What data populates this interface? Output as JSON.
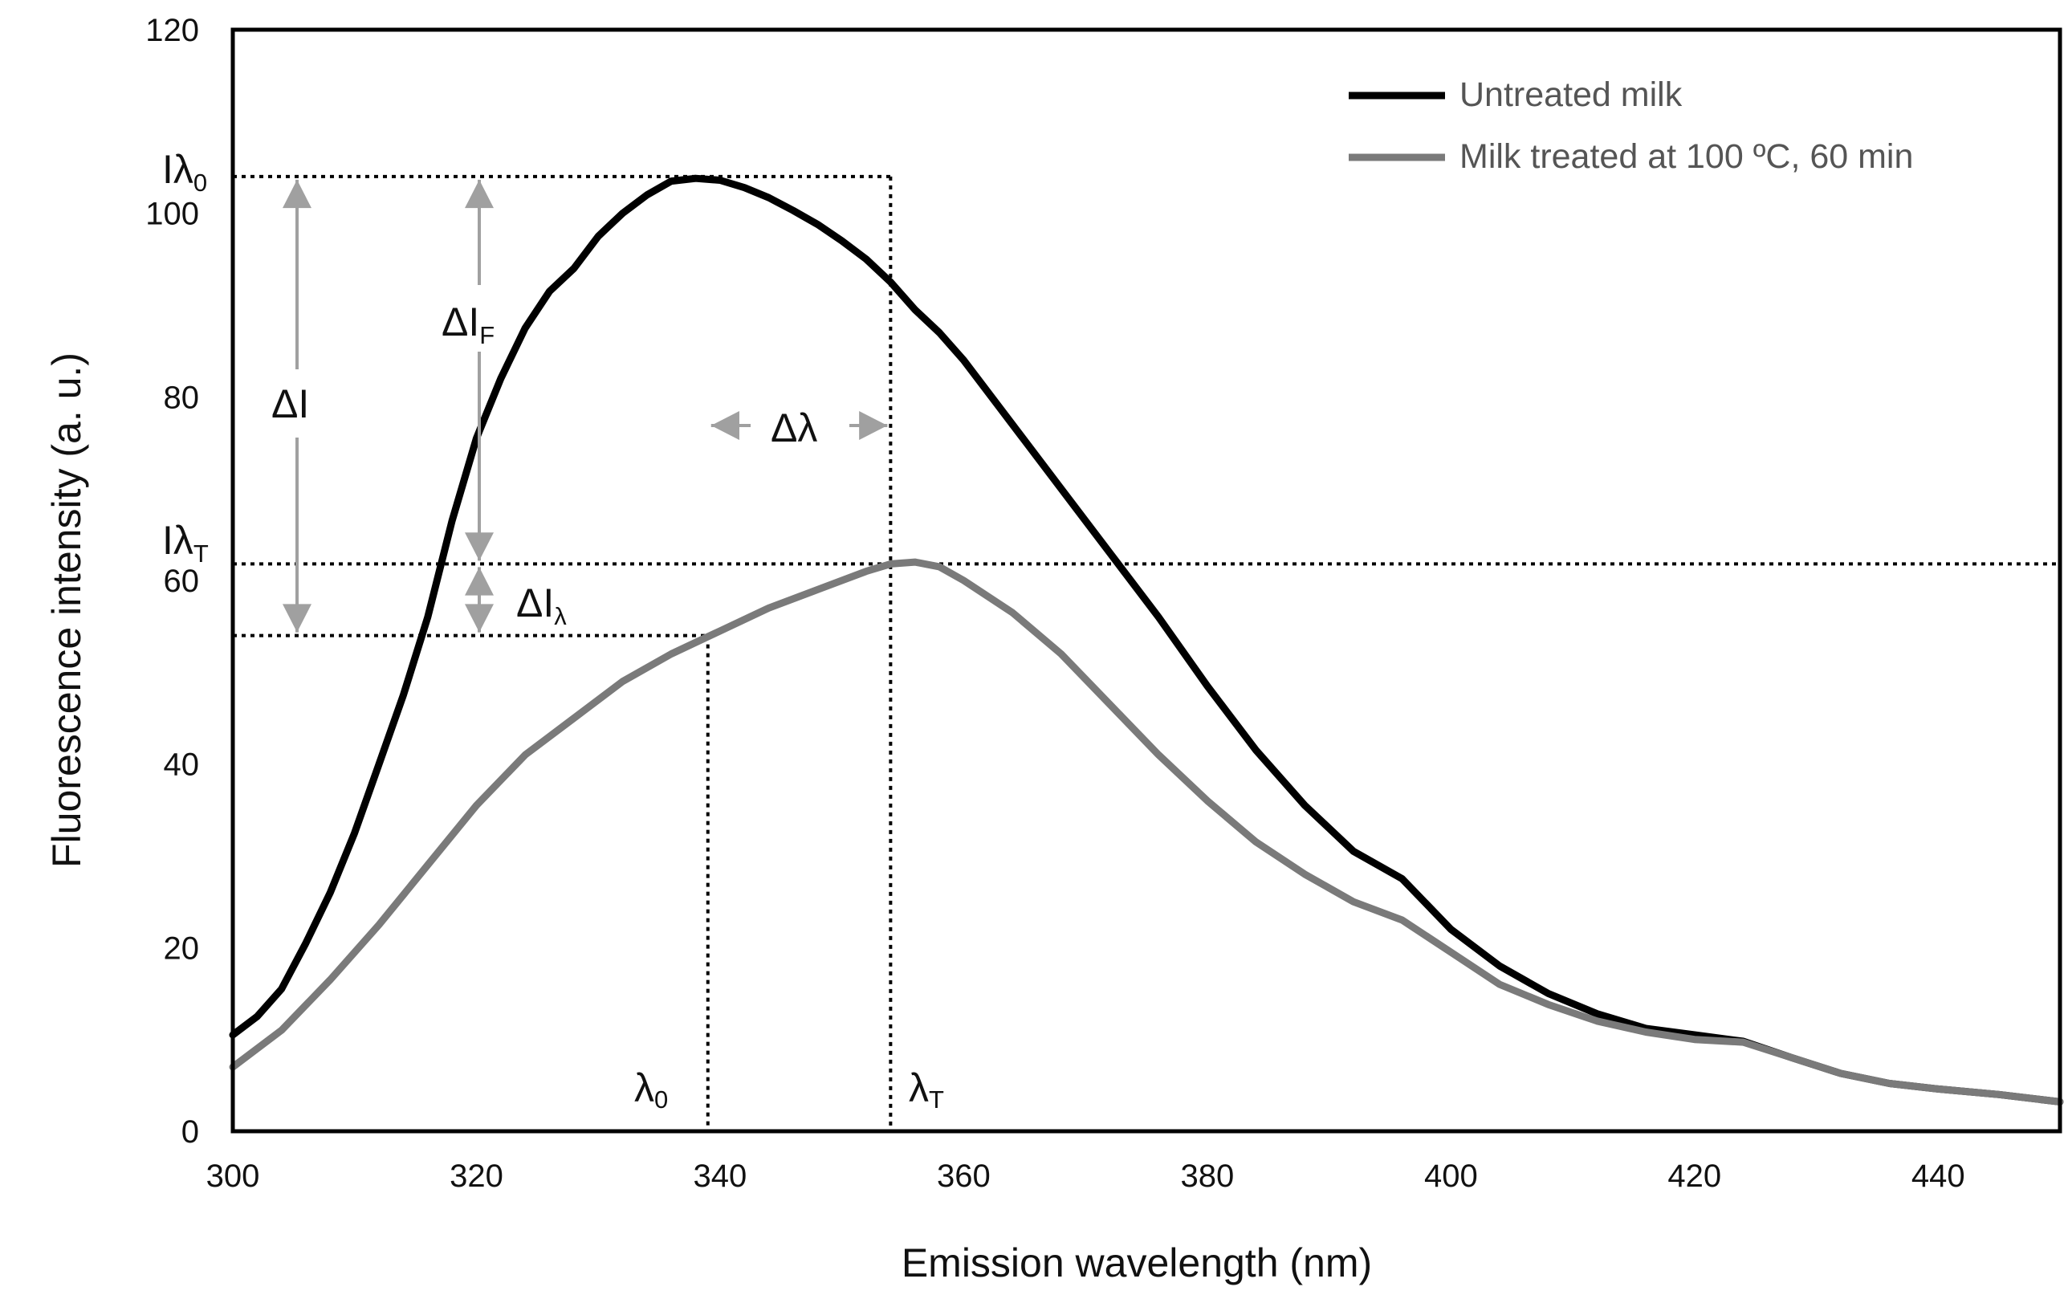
{
  "chart_data": {
    "type": "line",
    "title": "",
    "xlabel": "Emission wavelength (nm)",
    "ylabel": "Fluorescence intensity (a. u.)",
    "xlim": [
      300,
      450
    ],
    "ylim": [
      0,
      120
    ],
    "x_ticks": [
      "300",
      "320",
      "340",
      "360",
      "380",
      "400",
      "420",
      "440"
    ],
    "y_ticks": [
      "0",
      "20",
      "40",
      "60",
      "80",
      "100",
      "120"
    ],
    "grid": false,
    "legend_position": "top-right",
    "series": [
      {
        "name": "Untreated milk",
        "color": "#000000",
        "x": [
          300,
          302,
          304,
          306,
          308,
          310,
          312,
          314,
          316,
          318,
          320,
          322,
          324,
          326,
          328,
          330,
          332,
          334,
          336,
          338,
          340,
          342,
          344,
          346,
          348,
          350,
          352,
          354,
          356,
          358,
          360,
          364,
          368,
          372,
          376,
          380,
          384,
          388,
          392,
          396,
          400,
          404,
          408,
          412,
          416,
          420,
          424,
          428,
          432,
          436,
          440,
          445,
          450
        ],
        "values": [
          10.5,
          12.5,
          15.5,
          20.5,
          26,
          32.5,
          40,
          47.5,
          56,
          66.5,
          75.5,
          82,
          87.5,
          91.5,
          94,
          97.5,
          100,
          102,
          103.5,
          103.8,
          103.6,
          102.8,
          101.7,
          100.3,
          98.8,
          97,
          95,
          92.5,
          89.5,
          87,
          84,
          77,
          70,
          63,
          56,
          48.5,
          41.5,
          35.5,
          30.5,
          27.5,
          22,
          18,
          15,
          12.8,
          11.2,
          10.5,
          9.8,
          8,
          6.3,
          5.2,
          4.6,
          4.0,
          3.2
        ]
      },
      {
        "name": "Milk treated at 100 ºC, 60 min",
        "color": "#7a7a7a",
        "x": [
          300,
          304,
          308,
          312,
          316,
          320,
          324,
          328,
          332,
          336,
          340,
          344,
          348,
          352,
          354,
          356,
          358,
          360,
          364,
          368,
          372,
          376,
          380,
          384,
          388,
          392,
          396,
          400,
          404,
          408,
          412,
          416,
          420,
          424,
          428,
          432,
          436,
          440,
          445,
          450
        ],
        "values": [
          7,
          11,
          16.5,
          22.5,
          29,
          35.5,
          41,
          45,
          49,
          52,
          54.5,
          57,
          59,
          61,
          61.8,
          62,
          61.5,
          60,
          56.5,
          52,
          46.5,
          41,
          36,
          31.5,
          28,
          25,
          23,
          19.5,
          16,
          13.8,
          12,
          10.8,
          10,
          9.7,
          8,
          6.3,
          5.2,
          4.6,
          4.0,
          3.2
        ]
      }
    ],
    "annotations": {
      "i_lambda0": {
        "main": "Iλ",
        "sub": "0"
      },
      "i_lambdaT": {
        "main": "Iλ",
        "sub": "T"
      },
      "delta_i": "ΔI",
      "delta_if": {
        "main": "ΔI",
        "sub": "F"
      },
      "delta_ilambda": {
        "main": "ΔI",
        "sub": "λ"
      },
      "delta_lambda": "Δλ",
      "lambda0": {
        "main": "λ",
        "sub": "0"
      },
      "lambdaT": {
        "main": "λ",
        "sub": "T"
      },
      "i_lambda0_value": 104,
      "i_lambdaT_value": 61.8,
      "lower_level_value": 54,
      "lambda0_value": 339,
      "lambdaT_value": 354
    }
  }
}
